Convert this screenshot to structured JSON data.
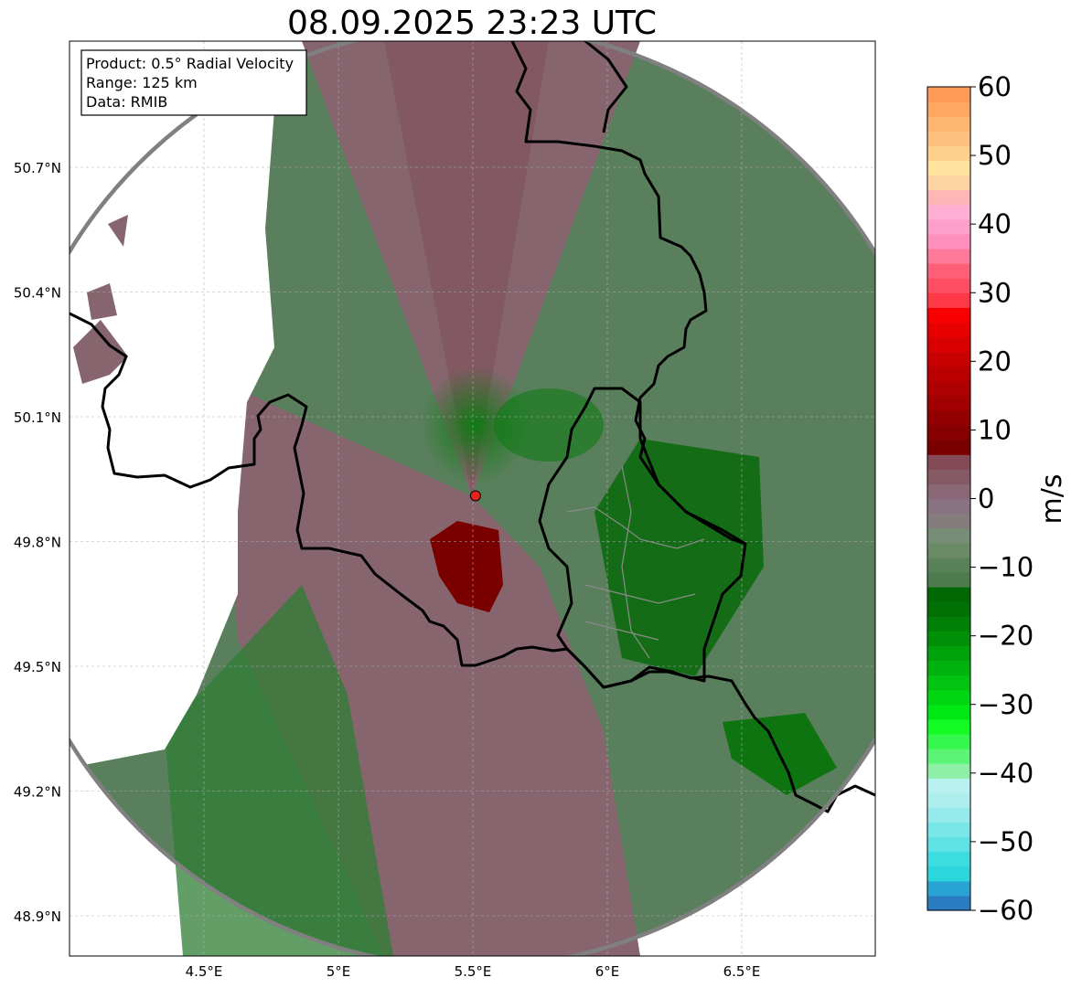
{
  "title": "08.09.2025 23:23 UTC",
  "info_box": {
    "product": "Product: 0.5° Radial Velocity",
    "range": "Range: 125 km",
    "source": "Data: RMIB"
  },
  "lon_ticks": [
    {
      "value": 4.5,
      "label": "4.5°E"
    },
    {
      "value": 5.0,
      "label": "5°E"
    },
    {
      "value": 5.5,
      "label": "5.5°E"
    },
    {
      "value": 6.0,
      "label": "6°E"
    },
    {
      "value": 6.5,
      "label": "6.5°E"
    }
  ],
  "lat_ticks": [
    {
      "value": 50.7,
      "label": "50.7°N"
    },
    {
      "value": 50.4,
      "label": "50.4°N"
    },
    {
      "value": 50.1,
      "label": "50.1°N"
    },
    {
      "value": 49.8,
      "label": "49.8°N"
    },
    {
      "value": 49.5,
      "label": "49.5°N"
    },
    {
      "value": 49.2,
      "label": "49.2°N"
    },
    {
      "value": 48.9,
      "label": "48.9°N"
    }
  ],
  "extent": {
    "lon_min": 4.0,
    "lon_max": 7.0,
    "lat_min": 48.8,
    "lat_max": 51.0
  },
  "radar_site": {
    "lon": 5.51,
    "lat": 49.91,
    "color": "#e8221c"
  },
  "colorbar": {
    "label": "m/s",
    "min": -60,
    "max": 60,
    "ticks": [
      "60",
      "50",
      "40",
      "30",
      "20",
      "10",
      "0",
      "−10",
      "−20",
      "−30",
      "−40",
      "−50",
      "−60"
    ],
    "colors": [
      "#2a7bbf",
      "#29a3d3",
      "#2cd6dd",
      "#3cdde0",
      "#5ee2e3",
      "#79e6e7",
      "#95eaeb",
      "#aeeeee",
      "#b9f0f0",
      "#8ef0a6",
      "#5cf474",
      "#35f84e",
      "#12fb22",
      "#00e814",
      "#00d612",
      "#00c410",
      "#00b20e",
      "#00a20b",
      "#009008",
      "#008006",
      "#007004",
      "#006802",
      "#4e7b4e",
      "#5a8258",
      "#6b8a66",
      "#788d76",
      "#857c7e",
      "#897281",
      "#8a6775",
      "#865a64",
      "#844a55",
      "#7a0000",
      "#860000",
      "#930000",
      "#a00000",
      "#ad0000",
      "#ba0000",
      "#c80000",
      "#d80000",
      "#e80000",
      "#f80000",
      "#ff3848",
      "#ff4e64",
      "#ff6078",
      "#ff7a98",
      "#ff8fbc",
      "#ff9fcc",
      "#ffb0d4",
      "#ffb6b6",
      "#ffd4a4",
      "#ffe39c",
      "#ffd08c",
      "#ffc27e",
      "#ffb670",
      "#ffa864",
      "#ff9a58"
    ]
  },
  "colors": {
    "axis_frame": "#000000",
    "range_ring": "#808080",
    "border_line": "#000000",
    "grid": "#b0b0b0",
    "inbound": "#4f7c52",
    "outbound": "#876672"
  }
}
